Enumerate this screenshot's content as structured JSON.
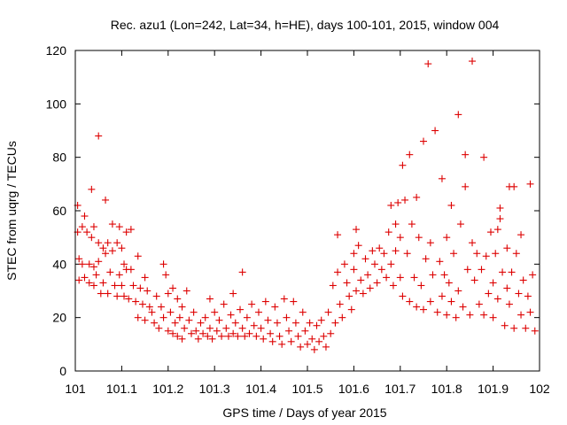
{
  "chart_data": {
    "type": "scatter",
    "title": "Rec. azu1 (Lon=242, Lat=34, h=HE), days 100-101, 2015, window 004",
    "xlabel": "GPS time / Days of year 2015",
    "ylabel": "STEC from uqrg / TECUs",
    "xlim": [
      101,
      102
    ],
    "ylim": [
      0,
      120
    ],
    "xticks": [
      101,
      101.1,
      101.2,
      101.3,
      101.4,
      101.5,
      101.6,
      101.7,
      101.8,
      101.9,
      102
    ],
    "xtick_labels": [
      "101",
      "101.1",
      "101.2",
      "101.3",
      "101.4",
      "101.5",
      "101.6",
      "101.7",
      "101.8",
      "101.9",
      "102"
    ],
    "yticks": [
      0,
      20,
      40,
      60,
      80,
      100,
      120
    ],
    "ytick_labels": [
      "0",
      "20",
      "40",
      "60",
      "80",
      "100",
      "120"
    ],
    "marker": "+",
    "marker_color": "#dd0000",
    "series": [
      {
        "name": "STEC",
        "points": [
          [
            101.005,
            62
          ],
          [
            101.005,
            52
          ],
          [
            101.008,
            42
          ],
          [
            101.008,
            34
          ],
          [
            101.015,
            54
          ],
          [
            101.015,
            40
          ],
          [
            101.02,
            58
          ],
          [
            101.02,
            35
          ],
          [
            101.025,
            52
          ],
          [
            101.03,
            40
          ],
          [
            101.03,
            33
          ],
          [
            101.035,
            68
          ],
          [
            101.035,
            50
          ],
          [
            101.04,
            54
          ],
          [
            101.04,
            39
          ],
          [
            101.04,
            32
          ],
          [
            101.045,
            36
          ],
          [
            101.05,
            88
          ],
          [
            101.05,
            48
          ],
          [
            101.05,
            41
          ],
          [
            101.055,
            29
          ],
          [
            101.06,
            46
          ],
          [
            101.06,
            33
          ],
          [
            101.065,
            64
          ],
          [
            101.065,
            44
          ],
          [
            101.07,
            48
          ],
          [
            101.07,
            29
          ],
          [
            101.075,
            37
          ],
          [
            101.08,
            55
          ],
          [
            101.08,
            45
          ],
          [
            101.085,
            32
          ],
          [
            101.09,
            48
          ],
          [
            101.09,
            28
          ],
          [
            101.095,
            54
          ],
          [
            101.095,
            36
          ],
          [
            101.1,
            46
          ],
          [
            101.1,
            32
          ],
          [
            101.105,
            40
          ],
          [
            101.105,
            28
          ],
          [
            101.11,
            52
          ],
          [
            101.11,
            38
          ],
          [
            101.115,
            27
          ],
          [
            101.12,
            53
          ],
          [
            101.12,
            38
          ],
          [
            101.125,
            32
          ],
          [
            101.13,
            26
          ],
          [
            101.135,
            43
          ],
          [
            101.135,
            20
          ],
          [
            101.14,
            31
          ],
          [
            101.145,
            25
          ],
          [
            101.15,
            35
          ],
          [
            101.15,
            19
          ],
          [
            101.155,
            30
          ],
          [
            101.16,
            24
          ],
          [
            101.165,
            22
          ],
          [
            101.17,
            18
          ],
          [
            101.175,
            28
          ],
          [
            101.18,
            16
          ],
          [
            101.185,
            24
          ],
          [
            101.19,
            40
          ],
          [
            101.19,
            20
          ],
          [
            101.195,
            36
          ],
          [
            101.2,
            29
          ],
          [
            101.2,
            15
          ],
          [
            101.205,
            22
          ],
          [
            101.21,
            31
          ],
          [
            101.21,
            14
          ],
          [
            101.215,
            18
          ],
          [
            101.22,
            27
          ],
          [
            101.22,
            13
          ],
          [
            101.225,
            20
          ],
          [
            101.23,
            24
          ],
          [
            101.23,
            12
          ],
          [
            101.235,
            16
          ],
          [
            101.24,
            30
          ],
          [
            101.245,
            19
          ],
          [
            101.25,
            14
          ],
          [
            101.255,
            22
          ],
          [
            101.26,
            15
          ],
          [
            101.265,
            12
          ],
          [
            101.27,
            18
          ],
          [
            101.275,
            14
          ],
          [
            101.28,
            20
          ],
          [
            101.285,
            13
          ],
          [
            101.29,
            27
          ],
          [
            101.29,
            16
          ],
          [
            101.295,
            12
          ],
          [
            101.3,
            22
          ],
          [
            101.305,
            15
          ],
          [
            101.31,
            19
          ],
          [
            101.315,
            13
          ],
          [
            101.32,
            25
          ],
          [
            101.325,
            16
          ],
          [
            101.33,
            13
          ],
          [
            101.335,
            21
          ],
          [
            101.34,
            29
          ],
          [
            101.34,
            14
          ],
          [
            101.345,
            18
          ],
          [
            101.35,
            13
          ],
          [
            101.355,
            23
          ],
          [
            101.36,
            37
          ],
          [
            101.36,
            16
          ],
          [
            101.365,
            13
          ],
          [
            101.37,
            20
          ],
          [
            101.375,
            14
          ],
          [
            101.38,
            25
          ],
          [
            101.385,
            17
          ],
          [
            101.39,
            13
          ],
          [
            101.395,
            22
          ],
          [
            101.4,
            16
          ],
          [
            101.405,
            12
          ],
          [
            101.41,
            26
          ],
          [
            101.415,
            19
          ],
          [
            101.42,
            14
          ],
          [
            101.425,
            11
          ],
          [
            101.43,
            24
          ],
          [
            101.435,
            18
          ],
          [
            101.44,
            13
          ],
          [
            101.445,
            10
          ],
          [
            101.45,
            27
          ],
          [
            101.455,
            20
          ],
          [
            101.46,
            15
          ],
          [
            101.465,
            11
          ],
          [
            101.47,
            26
          ],
          [
            101.475,
            18
          ],
          [
            101.48,
            13
          ],
          [
            101.485,
            9
          ],
          [
            101.49,
            22
          ],
          [
            101.495,
            15
          ],
          [
            101.5,
            10
          ],
          [
            101.505,
            18
          ],
          [
            101.51,
            12
          ],
          [
            101.515,
            8
          ],
          [
            101.52,
            17
          ],
          [
            101.525,
            11
          ],
          [
            101.53,
            19
          ],
          [
            101.535,
            13
          ],
          [
            101.54,
            9
          ],
          [
            101.545,
            22
          ],
          [
            101.55,
            14
          ],
          [
            101.555,
            32
          ],
          [
            101.56,
            18
          ],
          [
            101.565,
            51
          ],
          [
            101.565,
            37
          ],
          [
            101.57,
            25
          ],
          [
            101.575,
            20
          ],
          [
            101.58,
            40
          ],
          [
            101.585,
            33
          ],
          [
            101.59,
            28
          ],
          [
            101.595,
            23
          ],
          [
            101.6,
            44
          ],
          [
            101.6,
            38
          ],
          [
            101.605,
            53
          ],
          [
            101.605,
            30
          ],
          [
            101.61,
            47
          ],
          [
            101.615,
            34
          ],
          [
            101.62,
            29
          ],
          [
            101.625,
            42
          ],
          [
            101.63,
            36
          ],
          [
            101.635,
            31
          ],
          [
            101.64,
            45
          ],
          [
            101.645,
            40
          ],
          [
            101.65,
            33
          ],
          [
            101.655,
            46
          ],
          [
            101.66,
            38
          ],
          [
            101.665,
            44
          ],
          [
            101.67,
            35
          ],
          [
            101.675,
            52
          ],
          [
            101.68,
            62
          ],
          [
            101.68,
            40
          ],
          [
            101.685,
            32
          ],
          [
            101.69,
            55
          ],
          [
            101.69,
            45
          ],
          [
            101.695,
            63
          ],
          [
            101.7,
            50
          ],
          [
            101.7,
            35
          ],
          [
            101.705,
            77
          ],
          [
            101.705,
            28
          ],
          [
            101.71,
            64
          ],
          [
            101.715,
            44
          ],
          [
            101.72,
            81
          ],
          [
            101.72,
            26
          ],
          [
            101.725,
            55
          ],
          [
            101.73,
            35
          ],
          [
            101.735,
            65
          ],
          [
            101.735,
            24
          ],
          [
            101.74,
            50
          ],
          [
            101.745,
            32
          ],
          [
            101.75,
            86
          ],
          [
            101.75,
            23
          ],
          [
            101.755,
            42
          ],
          [
            101.76,
            115
          ],
          [
            101.765,
            48
          ],
          [
            101.765,
            26
          ],
          [
            101.77,
            36
          ],
          [
            101.775,
            90
          ],
          [
            101.78,
            22
          ],
          [
            101.785,
            41
          ],
          [
            101.79,
            72
          ],
          [
            101.79,
            28
          ],
          [
            101.795,
            36
          ],
          [
            101.8,
            50
          ],
          [
            101.8,
            21
          ],
          [
            101.805,
            33
          ],
          [
            101.81,
            62
          ],
          [
            101.81,
            26
          ],
          [
            101.815,
            44
          ],
          [
            101.82,
            20
          ],
          [
            101.825,
            96
          ],
          [
            101.825,
            30
          ],
          [
            101.83,
            55
          ],
          [
            101.835,
            24
          ],
          [
            101.84,
            81
          ],
          [
            101.84,
            69
          ],
          [
            101.845,
            38
          ],
          [
            101.85,
            21
          ],
          [
            101.855,
            116
          ],
          [
            101.855,
            48
          ],
          [
            101.86,
            34
          ],
          [
            101.865,
            44
          ],
          [
            101.87,
            25
          ],
          [
            101.875,
            38
          ],
          [
            101.88,
            80
          ],
          [
            101.88,
            21
          ],
          [
            101.885,
            43
          ],
          [
            101.89,
            29
          ],
          [
            101.895,
            52
          ],
          [
            101.9,
            33
          ],
          [
            101.9,
            20
          ],
          [
            101.905,
            44
          ],
          [
            101.91,
            53
          ],
          [
            101.91,
            27
          ],
          [
            101.915,
            61
          ],
          [
            101.915,
            57
          ],
          [
            101.92,
            37
          ],
          [
            101.925,
            17
          ],
          [
            101.93,
            46
          ],
          [
            101.93,
            31
          ],
          [
            101.935,
            69
          ],
          [
            101.935,
            25
          ],
          [
            101.94,
            37
          ],
          [
            101.945,
            69
          ],
          [
            101.945,
            16
          ],
          [
            101.95,
            44
          ],
          [
            101.955,
            29
          ],
          [
            101.96,
            51
          ],
          [
            101.96,
            21
          ],
          [
            101.965,
            34
          ],
          [
            101.97,
            16
          ],
          [
            101.975,
            28
          ],
          [
            101.98,
            70
          ],
          [
            101.98,
            22
          ],
          [
            101.985,
            36
          ],
          [
            101.99,
            15
          ]
        ]
      }
    ]
  }
}
